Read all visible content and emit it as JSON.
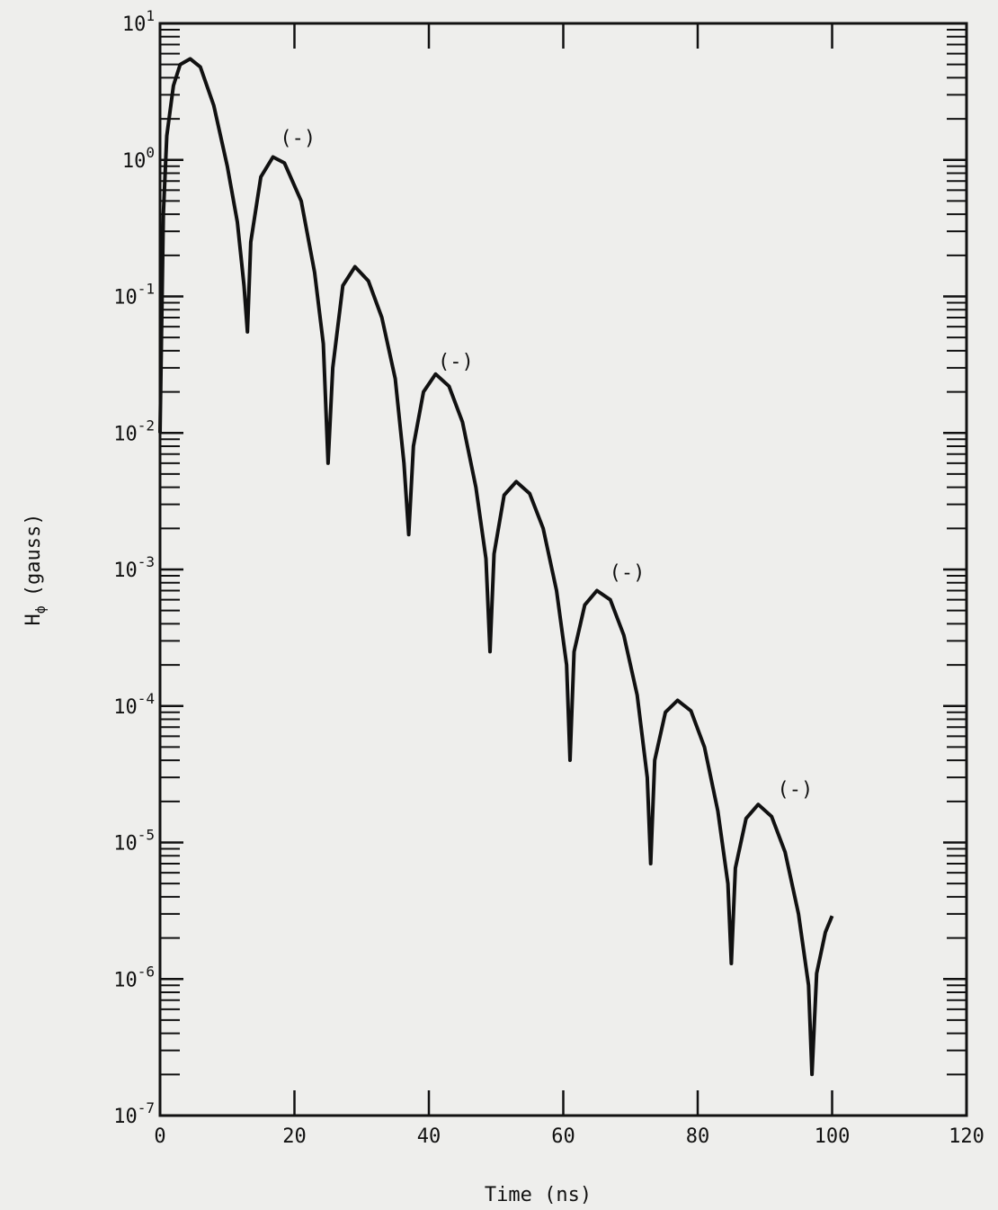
{
  "chart_data": {
    "type": "line",
    "xlabel": "Time (ns)",
    "ylabel": "H",
    "ylabel_sub": "ϕ",
    "ylabel_unit": "(gauss)",
    "xlim": [
      0,
      120
    ],
    "ylim": [
      1e-07,
      10
    ],
    "yscale": "log",
    "grid": false,
    "x_ticks": [
      0,
      20,
      40,
      60,
      80,
      100,
      120
    ],
    "x_tick_labels": [
      "0",
      "20",
      "40",
      "60",
      "80",
      "100",
      "120"
    ],
    "y_ticks": [
      {
        "value": 10,
        "base": "10",
        "exp": "1"
      },
      {
        "value": 1,
        "base": "10",
        "exp": "0"
      },
      {
        "value": 0.1,
        "base": "10",
        "exp": "-1"
      },
      {
        "value": 0.01,
        "base": "10",
        "exp": "-2"
      },
      {
        "value": 0.001,
        "base": "10",
        "exp": "-3"
      },
      {
        "value": 0.0001,
        "base": "10",
        "exp": "-4"
      },
      {
        "value": 1e-05,
        "base": "10",
        "exp": "-5"
      },
      {
        "value": 1e-06,
        "base": "10",
        "exp": "-6"
      },
      {
        "value": 1e-07,
        "base": "10",
        "exp": "-7"
      }
    ],
    "series": [
      {
        "x": [
          0,
          0.5,
          1,
          2,
          3,
          4.5,
          6,
          8,
          10,
          11.5,
          12.5,
          13,
          13.5,
          15,
          16.8,
          18.5,
          21,
          23,
          24.3,
          25,
          25.7,
          27.2,
          29,
          31,
          33,
          35,
          36.3,
          37,
          37.7,
          39.2,
          41,
          43,
          45,
          47,
          48.5,
          49.1,
          49.7,
          51.2,
          53,
          55,
          57,
          59,
          60.5,
          61,
          61.6,
          63.2,
          65,
          67,
          69,
          71,
          72.5,
          73,
          73.6,
          75.2,
          77,
          79,
          81,
          83,
          84.5,
          85,
          85.6,
          87.2,
          89,
          91,
          93,
          95,
          96.5,
          97,
          97.7,
          99,
          100
        ],
        "y": [
          0.01,
          0.4,
          1.5,
          3.5,
          5,
          5.5,
          4.8,
          2.5,
          0.9,
          0.35,
          0.12,
          0.055,
          0.25,
          0.75,
          1.05,
          0.95,
          0.5,
          0.15,
          0.045,
          0.006,
          0.03,
          0.12,
          0.165,
          0.13,
          0.07,
          0.025,
          0.006,
          0.0018,
          0.008,
          0.02,
          0.027,
          0.022,
          0.012,
          0.004,
          0.0012,
          0.00025,
          0.0013,
          0.0035,
          0.0044,
          0.0036,
          0.002,
          0.0007,
          0.0002,
          4e-05,
          0.00025,
          0.00055,
          0.0007,
          0.0006,
          0.00033,
          0.00012,
          3e-05,
          7e-06,
          4e-05,
          9e-05,
          0.00011,
          9.2e-05,
          5e-05,
          1.7e-05,
          5e-06,
          1.3e-06,
          6.5e-06,
          1.5e-05,
          1.9e-05,
          1.55e-05,
          8.5e-06,
          3e-06,
          9e-07,
          2e-07,
          1.1e-06,
          2.2e-06,
          2.9e-06
        ]
      }
    ],
    "annotations": [
      {
        "text": "(-)",
        "x": 20.5,
        "y": 1.3
      },
      {
        "text": "(-)",
        "x": 44,
        "y": 0.03
      },
      {
        "text": "(-)",
        "x": 69.5,
        "y": 0.00085
      },
      {
        "text": "(-)",
        "x": 94.5,
        "y": 2.2e-05
      }
    ]
  }
}
